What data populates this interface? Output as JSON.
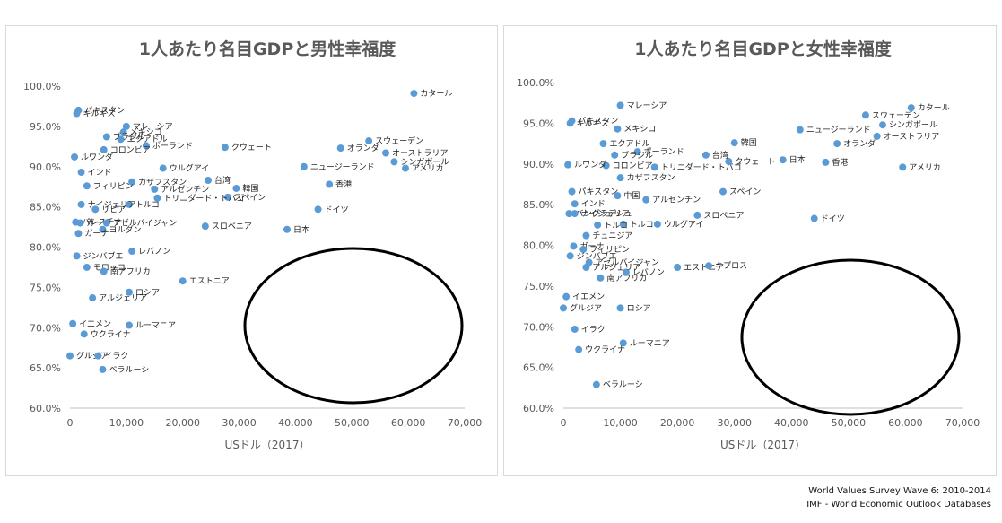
{
  "source": {
    "line1": "World Values Survey Wave 6: 2010-2014",
    "line2": "IMF - World Economic Outlook Databases"
  },
  "chart_data": [
    {
      "type": "scatter",
      "title": "1人あたり名目GDPと男性幸福度",
      "xlabel": "USドル（2017）",
      "ylabel": "",
      "xlim": [
        0,
        70000
      ],
      "ylim": [
        0.6,
        1.0
      ],
      "xticks": [
        "0",
        "10,000",
        "20,000",
        "30,000",
        "40,000",
        "50,000",
        "60,000",
        "70,000"
      ],
      "yticks": [
        "60.0%",
        "65.0%",
        "70.0%",
        "75.0%",
        "80.0%",
        "85.0%",
        "90.0%",
        "95.0%",
        "100.0%"
      ],
      "grid": false,
      "legend": "none",
      "point_color": "#5b9bd5",
      "points": [
        {
          "x": 61000,
          "y": 0.991,
          "label": "カタール"
        },
        {
          "x": 53000,
          "y": 0.932,
          "label": "スウェーデン"
        },
        {
          "x": 48000,
          "y": 0.923,
          "label": "オランダ"
        },
        {
          "x": 56000,
          "y": 0.917,
          "label": "オーストラリア"
        },
        {
          "x": 57500,
          "y": 0.906,
          "label": "シンガポール"
        },
        {
          "x": 59500,
          "y": 0.898,
          "label": "アメリカ"
        },
        {
          "x": 41500,
          "y": 0.9,
          "label": "ニュージーランド"
        },
        {
          "x": 46000,
          "y": 0.878,
          "label": "香港"
        },
        {
          "x": 44000,
          "y": 0.847,
          "label": "ドイツ"
        },
        {
          "x": 38500,
          "y": 0.822,
          "label": "日本"
        },
        {
          "x": 27500,
          "y": 0.924,
          "label": "クウェート"
        },
        {
          "x": 29500,
          "y": 0.873,
          "label": "韓国"
        },
        {
          "x": 24500,
          "y": 0.883,
          "label": "台湾"
        },
        {
          "x": 28000,
          "y": 0.862,
          "label": "スペイン"
        },
        {
          "x": 24000,
          "y": 0.826,
          "label": "スロベニア"
        },
        {
          "x": 20000,
          "y": 0.758,
          "label": "エストニア"
        },
        {
          "x": 16500,
          "y": 0.898,
          "label": "ウルグアイ"
        },
        {
          "x": 15000,
          "y": 0.872,
          "label": "アルゼンチン"
        },
        {
          "x": 15500,
          "y": 0.861,
          "label": "トリニダード・トバゴ"
        },
        {
          "x": 13500,
          "y": 0.926,
          "label": "ポーランド"
        },
        {
          "x": 10000,
          "y": 0.95,
          "label": "マレーシア"
        },
        {
          "x": 11000,
          "y": 0.881,
          "label": "カザフスタン"
        },
        {
          "x": 10500,
          "y": 0.853,
          "label": "トルコ"
        },
        {
          "x": 11000,
          "y": 0.795,
          "label": "レバノン"
        },
        {
          "x": 10500,
          "y": 0.744,
          "label": "ロシア"
        },
        {
          "x": 10500,
          "y": 0.703,
          "label": "ルーマニア"
        },
        {
          "x": 9500,
          "y": 0.943,
          "label": "メキシコ"
        },
        {
          "x": 9000,
          "y": 0.934,
          "label": "エクアドル"
        },
        {
          "x": 6500,
          "y": 0.937,
          "label": "ブラジル"
        },
        {
          "x": 6000,
          "y": 0.921,
          "label": "コロンビア"
        },
        {
          "x": 1500,
          "y": 0.97,
          "label": "パキスタン"
        },
        {
          "x": 1200,
          "y": 0.966,
          "label": "キルギス"
        },
        {
          "x": 800,
          "y": 0.912,
          "label": "ルワンダ"
        },
        {
          "x": 2000,
          "y": 0.893,
          "label": "インド"
        },
        {
          "x": 3000,
          "y": 0.876,
          "label": "フィリピン"
        },
        {
          "x": 2000,
          "y": 0.853,
          "label": "ナイジェリア"
        },
        {
          "x": 4500,
          "y": 0.847,
          "label": "リビア"
        },
        {
          "x": 1000,
          "y": 0.831,
          "label": "パレスチナ"
        },
        {
          "x": 1800,
          "y": 0.83,
          "label": "ガーナ"
        },
        {
          "x": 6500,
          "y": 0.83,
          "label": "アゼルバイジャン"
        },
        {
          "x": 5800,
          "y": 0.822,
          "label": "ヨルダン"
        },
        {
          "x": 1500,
          "y": 0.817,
          "label": "ガーナ"
        },
        {
          "x": 1200,
          "y": 0.789,
          "label": "ジンバブエ"
        },
        {
          "x": 3000,
          "y": 0.775,
          "label": "モロッコ"
        },
        {
          "x": 6000,
          "y": 0.77,
          "label": "南アフリカ"
        },
        {
          "x": 4000,
          "y": 0.737,
          "label": "アルジェリア"
        },
        {
          "x": 500,
          "y": 0.705,
          "label": "イエメン"
        },
        {
          "x": 2500,
          "y": 0.692,
          "label": "ウクライナ"
        },
        {
          "x": 0,
          "y": 0.665,
          "label": "グルジア"
        },
        {
          "x": 5000,
          "y": 0.665,
          "label": "イラク"
        },
        {
          "x": 5800,
          "y": 0.648,
          "label": "ベラルーシ"
        }
      ]
    },
    {
      "type": "scatter",
      "title": "1人あたり名目GDPと女性幸福度",
      "xlabel": "USドル（2017）",
      "ylabel": "",
      "xlim": [
        0,
        70000
      ],
      "ylim": [
        0.6,
        1.0
      ],
      "xticks": [
        "0",
        "10,000",
        "20,000",
        "30,000",
        "40,000",
        "50,000",
        "60,000",
        "70,000"
      ],
      "yticks": [
        "60.0%",
        "65.0%",
        "70.0%",
        "75.0%",
        "80.0%",
        "85.0%",
        "90.0%",
        "95.0%",
        "100.0%"
      ],
      "grid": false,
      "legend": "none",
      "point_color": "#5b9bd5",
      "points": [
        {
          "x": 61000,
          "y": 0.969,
          "label": "カタール"
        },
        {
          "x": 53000,
          "y": 0.96,
          "label": "スウェーデン"
        },
        {
          "x": 56000,
          "y": 0.948,
          "label": "シンガポール"
        },
        {
          "x": 55000,
          "y": 0.934,
          "label": "オーストラリア"
        },
        {
          "x": 41500,
          "y": 0.942,
          "label": "ニュージーランド"
        },
        {
          "x": 48000,
          "y": 0.925,
          "label": "オランダ"
        },
        {
          "x": 46000,
          "y": 0.902,
          "label": "香港"
        },
        {
          "x": 59500,
          "y": 0.896,
          "label": "アメリカ"
        },
        {
          "x": 38500,
          "y": 0.905,
          "label": "日本"
        },
        {
          "x": 44000,
          "y": 0.833,
          "label": "ドイツ"
        },
        {
          "x": 30000,
          "y": 0.926,
          "label": "韓国"
        },
        {
          "x": 29000,
          "y": 0.903,
          "label": "クウェート"
        },
        {
          "x": 25000,
          "y": 0.911,
          "label": "台湾"
        },
        {
          "x": 28000,
          "y": 0.866,
          "label": "スペイン"
        },
        {
          "x": 23500,
          "y": 0.837,
          "label": "スロベニア"
        },
        {
          "x": 20000,
          "y": 0.773,
          "label": "エストニア"
        },
        {
          "x": 25500,
          "y": 0.775,
          "label": "キプロス"
        },
        {
          "x": 16000,
          "y": 0.896,
          "label": "トリニダード・トバゴ"
        },
        {
          "x": 14500,
          "y": 0.856,
          "label": "アルゼンチン"
        },
        {
          "x": 16500,
          "y": 0.826,
          "label": "ウルグアイ"
        },
        {
          "x": 10000,
          "y": 0.972,
          "label": "マレーシア"
        },
        {
          "x": 9500,
          "y": 0.943,
          "label": "メキシコ"
        },
        {
          "x": 13000,
          "y": 0.915,
          "label": "ポーランド"
        },
        {
          "x": 9000,
          "y": 0.911,
          "label": "ブラジル"
        },
        {
          "x": 7000,
          "y": 0.925,
          "label": "エクアドル"
        },
        {
          "x": 10000,
          "y": 0.883,
          "label": "カザフスタン"
        },
        {
          "x": 10500,
          "y": 0.826,
          "label": "トルコ"
        },
        {
          "x": 11000,
          "y": 0.767,
          "label": "レバノン"
        },
        {
          "x": 10000,
          "y": 0.723,
          "label": "ロシア"
        },
        {
          "x": 10500,
          "y": 0.68,
          "label": "ルーマニア"
        },
        {
          "x": 1500,
          "y": 0.953,
          "label": "パキスタン"
        },
        {
          "x": 1200,
          "y": 0.95,
          "label": "キルギス"
        },
        {
          "x": 7500,
          "y": 0.898,
          "label": "コロンビア"
        },
        {
          "x": 800,
          "y": 0.899,
          "label": "ルワンダ"
        },
        {
          "x": 1500,
          "y": 0.866,
          "label": "パキスタン"
        },
        {
          "x": 9500,
          "y": 0.861,
          "label": "中国"
        },
        {
          "x": 2000,
          "y": 0.851,
          "label": "インド"
        },
        {
          "x": 1000,
          "y": 0.839,
          "label": "バングラデシュ"
        },
        {
          "x": 2000,
          "y": 0.839,
          "label": "ナイジェリア"
        },
        {
          "x": 6000,
          "y": 0.825,
          "label": "トルコ"
        },
        {
          "x": 4000,
          "y": 0.812,
          "label": "チュニジア"
        },
        {
          "x": 1800,
          "y": 0.799,
          "label": "ガーナ"
        },
        {
          "x": 3500,
          "y": 0.795,
          "label": "フィリピン"
        },
        {
          "x": 1200,
          "y": 0.787,
          "label": "ジンバブエ"
        },
        {
          "x": 4500,
          "y": 0.779,
          "label": "アゼルバイジャン"
        },
        {
          "x": 4000,
          "y": 0.773,
          "label": "アルジェリア"
        },
        {
          "x": 6500,
          "y": 0.76,
          "label": "南アフリカ"
        },
        {
          "x": 500,
          "y": 0.737,
          "label": "イエメン"
        },
        {
          "x": 0,
          "y": 0.723,
          "label": "グルジア"
        },
        {
          "x": 2000,
          "y": 0.697,
          "label": "イラク"
        },
        {
          "x": 2700,
          "y": 0.672,
          "label": "ウクライナ"
        },
        {
          "x": 5800,
          "y": 0.629,
          "label": "ベラルーシ"
        }
      ]
    }
  ]
}
